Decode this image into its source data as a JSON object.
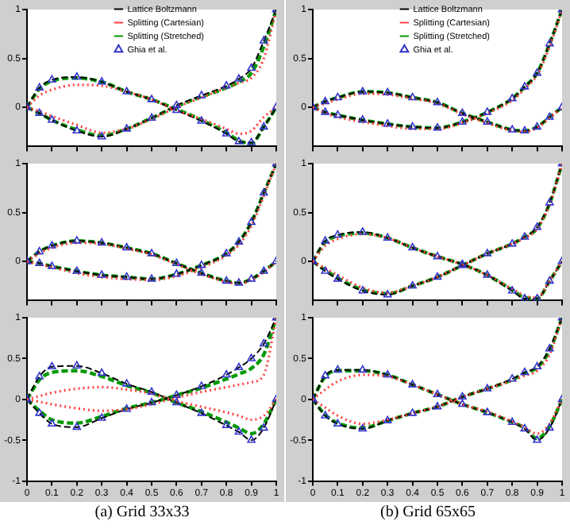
{
  "chart_data": [
    {
      "type": "line",
      "x": [
        0,
        0.05,
        0.1,
        0.2,
        0.3,
        0.4,
        0.5,
        0.6,
        0.7,
        0.8,
        0.85,
        0.9,
        0.95,
        1
      ],
      "xlim": [
        0,
        1
      ],
      "xticks": [
        0,
        0.1,
        0.2,
        0.3,
        0.4,
        0.5,
        0.6,
        0.7,
        0.8,
        0.9,
        1
      ],
      "ylim": [
        -0.4,
        1
      ],
      "yticks": [
        0,
        0.5,
        1
      ],
      "tick_labels": "y",
      "grid": false,
      "legend": "top",
      "series": [
        {
          "name": "Lattice Boltzmann",
          "color": "#000000",
          "line_style": "dashed",
          "marker": "none",
          "values": [
            0,
            -0.06,
            -0.13,
            -0.24,
            -0.3,
            -0.22,
            -0.11,
            0.02,
            0.12,
            0.22,
            0.29,
            0.4,
            0.68,
            1
          ]
        },
        {
          "name": "Splitting (Cartesian)",
          "color": "#ff4040",
          "line_style": "dotted",
          "marker": "none",
          "values": [
            0,
            -0.04,
            -0.09,
            -0.18,
            -0.26,
            -0.22,
            -0.12,
            0,
            0.1,
            0.2,
            0.25,
            0.3,
            0.5,
            1
          ]
        },
        {
          "name": "Splitting (Stretched)",
          "color": "#009900",
          "line_style": "dashed",
          "marker": "none",
          "values": [
            0,
            -0.06,
            -0.13,
            -0.23,
            -0.29,
            -0.22,
            -0.11,
            0.01,
            0.11,
            0.2,
            0.26,
            0.35,
            0.62,
            1
          ]
        },
        {
          "name": "Ghia et al.",
          "type": "scatter",
          "color": "#3333cc",
          "marker": "triangle",
          "values": [
            0,
            -0.06,
            -0.13,
            -0.24,
            -0.3,
            -0.22,
            -0.11,
            0.02,
            0.12,
            0.22,
            0.29,
            0.4,
            0.68,
            1
          ]
        },
        {
          "color": "#000000",
          "line_style": "dashed",
          "marker": "none",
          "values": [
            0,
            0.2,
            0.28,
            0.31,
            0.26,
            0.16,
            0.08,
            -0.03,
            -0.14,
            -0.27,
            -0.35,
            -0.36,
            -0.2,
            0
          ]
        },
        {
          "color": "#ff4040",
          "line_style": "dotted",
          "marker": "none",
          "values": [
            0,
            0.12,
            0.18,
            0.23,
            0.22,
            0.16,
            0.08,
            -0.03,
            -0.12,
            -0.22,
            -0.27,
            -0.24,
            -0.1,
            0
          ]
        },
        {
          "color": "#009900",
          "line_style": "dashed",
          "marker": "none",
          "values": [
            0,
            0.19,
            0.27,
            0.3,
            0.26,
            0.16,
            0.08,
            -0.02,
            -0.13,
            -0.26,
            -0.34,
            -0.37,
            -0.2,
            0
          ]
        },
        {
          "type": "scatter",
          "color": "#3333cc",
          "marker": "triangle",
          "values": [
            0,
            0.2,
            0.28,
            0.31,
            0.26,
            0.16,
            0.08,
            -0.03,
            -0.14,
            -0.27,
            -0.35,
            -0.36,
            -0.2,
            0
          ]
        }
      ]
    },
    {
      "type": "line",
      "x": [
        0,
        0.05,
        0.1,
        0.2,
        0.3,
        0.4,
        0.5,
        0.6,
        0.7,
        0.8,
        0.85,
        0.9,
        0.95,
        1
      ],
      "xlim": [
        0,
        1
      ],
      "xticks": [
        0,
        0.1,
        0.2,
        0.3,
        0.4,
        0.5,
        0.6,
        0.7,
        0.8,
        0.9,
        1
      ],
      "ylim": [
        -0.4,
        1
      ],
      "yticks": [
        0,
        0.5,
        1
      ],
      "tick_labels": "y",
      "grid": false,
      "legend": "top",
      "series": [
        {
          "name": "Lattice Boltzmann",
          "color": "#000000",
          "line_style": "dashed",
          "marker": "none",
          "values": [
            0,
            -0.05,
            -0.08,
            -0.13,
            -0.17,
            -0.2,
            -0.21,
            -0.15,
            -0.05,
            0.09,
            0.21,
            0.35,
            0.65,
            1
          ]
        },
        {
          "name": "Splitting (Cartesian)",
          "color": "#ff4040",
          "line_style": "dotted",
          "marker": "none",
          "values": [
            0,
            -0.06,
            -0.1,
            -0.15,
            -0.19,
            -0.22,
            -0.22,
            -0.16,
            -0.06,
            0.07,
            0.19,
            0.33,
            0.62,
            1
          ]
        },
        {
          "name": "Splitting (Stretched)",
          "color": "#009900",
          "line_style": "dashed",
          "marker": "none",
          "values": [
            0,
            -0.05,
            -0.08,
            -0.13,
            -0.17,
            -0.2,
            -0.21,
            -0.15,
            -0.05,
            0.09,
            0.21,
            0.35,
            0.65,
            1
          ]
        },
        {
          "name": "Ghia et al.",
          "type": "scatter",
          "color": "#3333cc",
          "marker": "triangle",
          "values": [
            0,
            -0.05,
            -0.08,
            -0.13,
            -0.17,
            -0.2,
            -0.21,
            -0.15,
            -0.05,
            0.09,
            0.21,
            0.35,
            0.65,
            1
          ]
        },
        {
          "color": "#000000",
          "line_style": "dashed",
          "marker": "none",
          "values": [
            0,
            0.06,
            0.1,
            0.16,
            0.15,
            0.1,
            0.05,
            -0.06,
            -0.15,
            -0.23,
            -0.24,
            -0.2,
            -0.1,
            0
          ]
        },
        {
          "color": "#ff4040",
          "line_style": "dotted",
          "marker": "none",
          "values": [
            0,
            0.04,
            0.08,
            0.14,
            0.13,
            0.09,
            0.04,
            -0.07,
            -0.16,
            -0.24,
            -0.25,
            -0.21,
            -0.11,
            0
          ]
        },
        {
          "color": "#009900",
          "line_style": "dashed",
          "marker": "none",
          "values": [
            0,
            0.06,
            0.1,
            0.16,
            0.15,
            0.1,
            0.05,
            -0.06,
            -0.15,
            -0.23,
            -0.24,
            -0.2,
            -0.1,
            0
          ]
        },
        {
          "type": "scatter",
          "color": "#3333cc",
          "marker": "triangle",
          "values": [
            0,
            0.06,
            0.1,
            0.16,
            0.15,
            0.1,
            0.05,
            -0.06,
            -0.15,
            -0.23,
            -0.24,
            -0.2,
            -0.1,
            0
          ]
        }
      ]
    },
    {
      "type": "line",
      "x": [
        0,
        0.05,
        0.1,
        0.2,
        0.3,
        0.4,
        0.5,
        0.6,
        0.7,
        0.8,
        0.85,
        0.9,
        0.95,
        1
      ],
      "xlim": [
        0,
        1
      ],
      "xticks": [
        0,
        0.1,
        0.2,
        0.3,
        0.4,
        0.5,
        0.6,
        0.7,
        0.8,
        0.9,
        1
      ],
      "ylim": [
        -0.4,
        1
      ],
      "yticks": [
        0,
        0.5,
        1
      ],
      "tick_labels": "y",
      "grid": false,
      "series": [
        {
          "color": "#000000",
          "line_style": "dashed",
          "marker": "none",
          "values": [
            0,
            -0.02,
            -0.05,
            -0.1,
            -0.14,
            -0.16,
            -0.18,
            -0.13,
            -0.04,
            0.08,
            0.2,
            0.4,
            0.7,
            1
          ]
        },
        {
          "color": "#ff4040",
          "line_style": "dotted",
          "marker": "none",
          "values": [
            0,
            -0.03,
            -0.06,
            -0.12,
            -0.16,
            -0.18,
            -0.19,
            -0.15,
            -0.06,
            0.06,
            0.17,
            0.36,
            0.67,
            1
          ]
        },
        {
          "color": "#009900",
          "line_style": "dashed",
          "marker": "none",
          "values": [
            0,
            -0.02,
            -0.05,
            -0.1,
            -0.14,
            -0.16,
            -0.18,
            -0.13,
            -0.04,
            0.08,
            0.2,
            0.4,
            0.7,
            1
          ]
        },
        {
          "type": "scatter",
          "color": "#3333cc",
          "marker": "triangle",
          "values": [
            0,
            -0.02,
            -0.05,
            -0.1,
            -0.14,
            -0.16,
            -0.18,
            -0.13,
            -0.04,
            0.08,
            0.2,
            0.4,
            0.7,
            1
          ]
        },
        {
          "color": "#000000",
          "line_style": "dashed",
          "marker": "none",
          "values": [
            0,
            0.1,
            0.16,
            0.21,
            0.19,
            0.14,
            0.08,
            -0.02,
            -0.12,
            -0.2,
            -0.22,
            -0.18,
            -0.1,
            0
          ]
        },
        {
          "color": "#ff4040",
          "line_style": "dotted",
          "marker": "none",
          "values": [
            0,
            0.08,
            0.14,
            0.19,
            0.18,
            0.13,
            0.07,
            -0.03,
            -0.13,
            -0.21,
            -0.23,
            -0.19,
            -0.11,
            0
          ]
        },
        {
          "color": "#009900",
          "line_style": "dashed",
          "marker": "none",
          "values": [
            0,
            0.1,
            0.16,
            0.21,
            0.19,
            0.14,
            0.08,
            -0.02,
            -0.12,
            -0.2,
            -0.22,
            -0.18,
            -0.1,
            0
          ]
        },
        {
          "type": "scatter",
          "color": "#3333cc",
          "marker": "triangle",
          "values": [
            0,
            0.1,
            0.16,
            0.21,
            0.19,
            0.14,
            0.08,
            -0.02,
            -0.12,
            -0.2,
            -0.22,
            -0.18,
            -0.1,
            0
          ]
        }
      ]
    },
    {
      "type": "line",
      "x": [
        0,
        0.05,
        0.1,
        0.2,
        0.3,
        0.4,
        0.5,
        0.6,
        0.7,
        0.8,
        0.85,
        0.9,
        0.95,
        1
      ],
      "xlim": [
        0,
        1
      ],
      "xticks": [
        0,
        0.1,
        0.2,
        0.3,
        0.4,
        0.5,
        0.6,
        0.7,
        0.8,
        0.9,
        1
      ],
      "ylim": [
        -0.4,
        1
      ],
      "yticks": [
        0,
        0.5,
        1
      ],
      "tick_labels": "y",
      "grid": false,
      "series": [
        {
          "color": "#000000",
          "line_style": "dashed",
          "marker": "none",
          "values": [
            0,
            -0.1,
            -0.18,
            -0.3,
            -0.34,
            -0.25,
            -0.16,
            -0.04,
            0.08,
            0.18,
            0.25,
            0.35,
            0.6,
            1
          ]
        },
        {
          "color": "#ff4040",
          "line_style": "dotted",
          "marker": "none",
          "values": [
            0,
            -0.07,
            -0.14,
            -0.27,
            -0.32,
            -0.25,
            -0.16,
            -0.04,
            0.08,
            0.18,
            0.24,
            0.33,
            0.58,
            1
          ]
        },
        {
          "color": "#009900",
          "line_style": "dashed",
          "marker": "none",
          "values": [
            0,
            -0.09,
            -0.17,
            -0.29,
            -0.33,
            -0.25,
            -0.16,
            -0.04,
            0.08,
            0.18,
            0.25,
            0.34,
            0.59,
            1
          ]
        },
        {
          "type": "scatter",
          "color": "#3333cc",
          "marker": "triangle",
          "values": [
            0,
            -0.1,
            -0.18,
            -0.3,
            -0.34,
            -0.25,
            -0.16,
            -0.04,
            0.08,
            0.18,
            0.25,
            0.35,
            0.6,
            1
          ]
        },
        {
          "color": "#000000",
          "line_style": "dashed",
          "marker": "none",
          "values": [
            0,
            0.21,
            0.27,
            0.3,
            0.24,
            0.14,
            0.05,
            -0.03,
            -0.14,
            -0.3,
            -0.38,
            -0.38,
            -0.2,
            0
          ]
        },
        {
          "color": "#ff4040",
          "line_style": "dotted",
          "marker": "none",
          "values": [
            0,
            0.16,
            0.23,
            0.28,
            0.24,
            0.14,
            0.05,
            -0.03,
            -0.14,
            -0.28,
            -0.35,
            -0.37,
            -0.2,
            0
          ]
        },
        {
          "color": "#009900",
          "line_style": "dashed",
          "marker": "none",
          "values": [
            0,
            0.2,
            0.26,
            0.29,
            0.24,
            0.14,
            0.05,
            -0.03,
            -0.14,
            -0.29,
            -0.37,
            -0.38,
            -0.2,
            0
          ]
        },
        {
          "type": "scatter",
          "color": "#3333cc",
          "marker": "triangle",
          "values": [
            0,
            0.21,
            0.27,
            0.3,
            0.24,
            0.14,
            0.05,
            -0.03,
            -0.14,
            -0.3,
            -0.38,
            -0.38,
            -0.2,
            0
          ]
        }
      ]
    },
    {
      "type": "line",
      "x": [
        0,
        0.05,
        0.1,
        0.2,
        0.3,
        0.4,
        0.5,
        0.6,
        0.7,
        0.8,
        0.85,
        0.9,
        0.95,
        1
      ],
      "xlim": [
        0,
        1
      ],
      "xticks": [
        0,
        0.1,
        0.2,
        0.3,
        0.4,
        0.5,
        0.6,
        0.7,
        0.8,
        0.9,
        1
      ],
      "ylim": [
        -1,
        1
      ],
      "yticks": [
        -1,
        -0.5,
        0,
        0.5,
        1
      ],
      "grid": false,
      "annotations": [
        "(a) Grid 33x33"
      ],
      "series": [
        {
          "color": "#000000",
          "line_style": "dashed",
          "marker": "none",
          "values": [
            0,
            -0.17,
            -0.3,
            -0.34,
            -0.23,
            -0.12,
            -0.04,
            0.05,
            0.16,
            0.3,
            0.39,
            0.5,
            0.68,
            1
          ]
        },
        {
          "color": "#ff4040",
          "line_style": "dotted",
          "marker": "none",
          "values": [
            0,
            -0.03,
            -0.06,
            -0.11,
            -0.14,
            -0.12,
            -0.06,
            0.02,
            0.09,
            0.15,
            0.18,
            0.21,
            0.3,
            1
          ]
        },
        {
          "color": "#009900",
          "line_style": "dashed",
          "marker": "none",
          "values": [
            0,
            -0.14,
            -0.25,
            -0.29,
            -0.21,
            -0.11,
            -0.04,
            0.05,
            0.14,
            0.25,
            0.31,
            0.38,
            0.55,
            1
          ]
        },
        {
          "type": "scatter",
          "color": "#3333cc",
          "marker": "triangle",
          "values": [
            0,
            -0.17,
            -0.3,
            -0.34,
            -0.23,
            -0.12,
            -0.04,
            0.05,
            0.16,
            0.3,
            0.39,
            0.5,
            0.68,
            1
          ]
        },
        {
          "color": "#000000",
          "line_style": "dashed",
          "marker": "none",
          "values": [
            0,
            0.28,
            0.4,
            0.41,
            0.32,
            0.19,
            0.09,
            -0.04,
            -0.17,
            -0.32,
            -0.4,
            -0.5,
            -0.35,
            0
          ]
        },
        {
          "color": "#ff4040",
          "line_style": "dotted",
          "marker": "none",
          "values": [
            0,
            0.04,
            0.08,
            0.13,
            0.15,
            0.12,
            0.07,
            -0.02,
            -0.09,
            -0.16,
            -0.2,
            -0.25,
            -0.2,
            0
          ]
        },
        {
          "color": "#009900",
          "line_style": "dashed",
          "marker": "none",
          "values": [
            0,
            0.24,
            0.33,
            0.35,
            0.28,
            0.17,
            0.08,
            -0.04,
            -0.15,
            -0.28,
            -0.35,
            -0.42,
            -0.3,
            0
          ]
        },
        {
          "type": "scatter",
          "color": "#3333cc",
          "marker": "triangle",
          "values": [
            0,
            0.28,
            0.4,
            0.41,
            0.32,
            0.19,
            0.09,
            -0.04,
            -0.17,
            -0.32,
            -0.4,
            -0.5,
            -0.35,
            0
          ]
        }
      ]
    },
    {
      "type": "line",
      "x": [
        0,
        0.05,
        0.1,
        0.2,
        0.3,
        0.4,
        0.5,
        0.6,
        0.7,
        0.8,
        0.85,
        0.9,
        0.95,
        1
      ],
      "xlim": [
        0,
        1
      ],
      "xticks": [
        0,
        0.1,
        0.2,
        0.3,
        0.4,
        0.5,
        0.6,
        0.7,
        0.8,
        0.9,
        1
      ],
      "ylim": [
        -1,
        1
      ],
      "yticks": [
        -1,
        -0.5,
        0,
        0.5,
        1
      ],
      "grid": false,
      "annotations": [
        "(b) Grid 65x65"
      ],
      "series": [
        {
          "color": "#000000",
          "line_style": "dashed",
          "marker": "none",
          "values": [
            0,
            -0.2,
            -0.3,
            -0.36,
            -0.26,
            -0.17,
            -0.09,
            0.03,
            0.13,
            0.25,
            0.33,
            0.4,
            0.62,
            1
          ]
        },
        {
          "color": "#ff4040",
          "line_style": "dotted",
          "marker": "none",
          "values": [
            0,
            -0.1,
            -0.2,
            -0.3,
            -0.25,
            -0.17,
            -0.09,
            0.03,
            0.13,
            0.23,
            0.29,
            0.35,
            0.55,
            1
          ]
        },
        {
          "color": "#009900",
          "line_style": "dashed",
          "marker": "none",
          "values": [
            0,
            -0.19,
            -0.29,
            -0.35,
            -0.26,
            -0.17,
            -0.09,
            0.03,
            0.13,
            0.24,
            0.32,
            0.39,
            0.6,
            1
          ]
        },
        {
          "type": "scatter",
          "color": "#3333cc",
          "marker": "triangle",
          "values": [
            0,
            -0.2,
            -0.3,
            -0.36,
            -0.26,
            -0.17,
            -0.09,
            0.03,
            0.13,
            0.25,
            0.33,
            0.4,
            0.62,
            1
          ]
        },
        {
          "color": "#000000",
          "line_style": "dashed",
          "marker": "none",
          "values": [
            0,
            0.29,
            0.36,
            0.36,
            0.3,
            0.18,
            0.06,
            -0.06,
            -0.16,
            -0.28,
            -0.36,
            -0.5,
            -0.35,
            0
          ]
        },
        {
          "color": "#ff4040",
          "line_style": "dotted",
          "marker": "none",
          "values": [
            0,
            0.12,
            0.22,
            0.3,
            0.28,
            0.18,
            0.06,
            -0.06,
            -0.15,
            -0.27,
            -0.34,
            -0.42,
            -0.3,
            0
          ]
        },
        {
          "color": "#009900",
          "line_style": "dashed",
          "marker": "none",
          "values": [
            0,
            0.28,
            0.35,
            0.35,
            0.3,
            0.18,
            0.06,
            -0.06,
            -0.16,
            -0.28,
            -0.35,
            -0.48,
            -0.33,
            0
          ]
        },
        {
          "type": "scatter",
          "color": "#3333cc",
          "marker": "triangle",
          "values": [
            0,
            0.29,
            0.36,
            0.36,
            0.3,
            0.18,
            0.06,
            -0.06,
            -0.16,
            -0.28,
            -0.36,
            -0.5,
            -0.35,
            0
          ]
        }
      ]
    }
  ]
}
